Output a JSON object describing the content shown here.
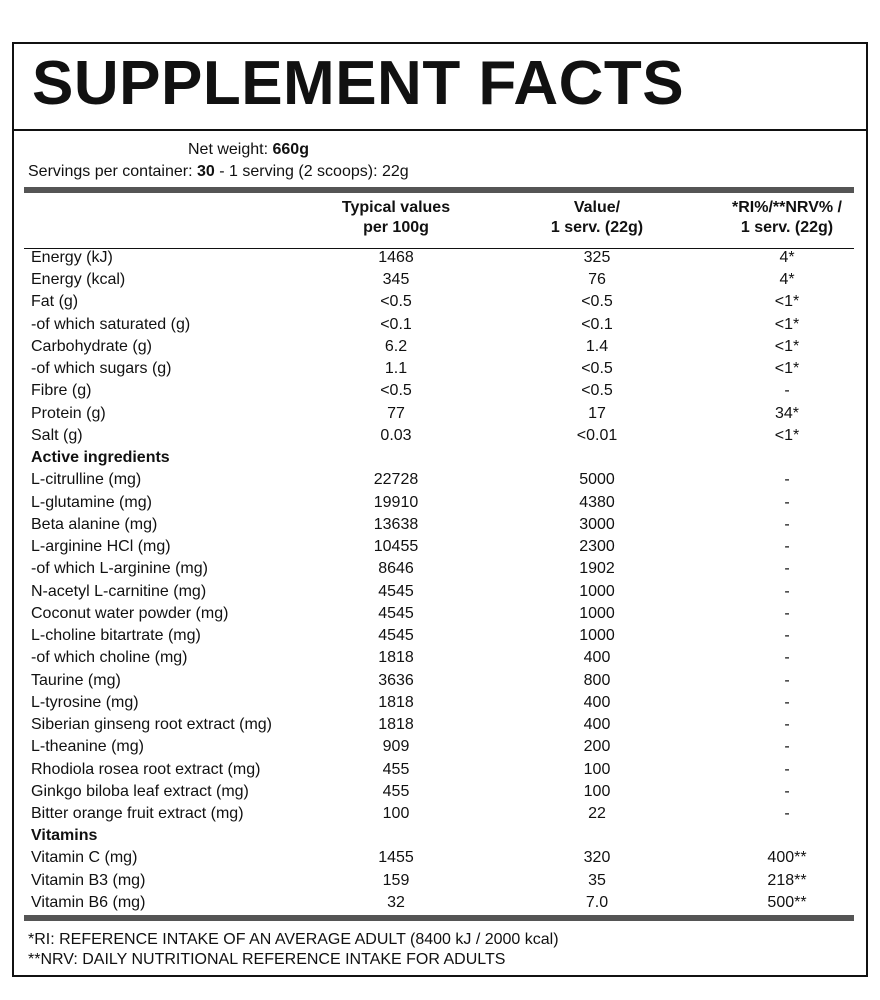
{
  "header": {
    "title": "SUPPLEMENT FACTS"
  },
  "net_weight": {
    "label": "Net weight:",
    "value": "660g"
  },
  "servings": {
    "label": "Servings per container:",
    "value": "30",
    "rest": "- 1 serving (2 scoops): 22g"
  },
  "table": {
    "columns": [
      [
        "Typical values",
        "per 100g"
      ],
      [
        "Value/",
        "1 serv. (22g)"
      ],
      [
        "*RI%/**NRV% /",
        "1 serv. (22g)"
      ]
    ],
    "rows": [
      [
        "Energy (kJ)",
        "1468",
        "325",
        "4*"
      ],
      [
        "Energy (kcal)",
        "345",
        "76",
        "4*"
      ],
      [
        "Fat (g)",
        "<0.5",
        "<0.5",
        "<1*"
      ],
      [
        "-of which saturated (g)",
        "<0.1",
        "<0.1",
        "<1*"
      ],
      [
        "Carbohydrate (g)",
        "6.2",
        "1.4",
        "<1*"
      ],
      [
        "-of which sugars (g)",
        "1.1",
        "<0.5",
        "<1*"
      ],
      [
        "Fibre (g)",
        "<0.5",
        "<0.5",
        "-"
      ],
      [
        "Protein (g)",
        "77",
        "17",
        "34*"
      ],
      [
        "Salt (g)",
        "0.03",
        "<0.01",
        "<1*"
      ],
      [
        "Active ingredients"
      ],
      [
        "L-citrulline (mg)",
        "22728",
        "5000",
        "-"
      ],
      [
        "L-glutamine (mg)",
        "19910",
        "4380",
        "-"
      ],
      [
        "Beta alanine (mg)",
        "13638",
        "3000",
        "-"
      ],
      [
        "L-arginine HCl (mg)",
        "10455",
        "2300",
        "-"
      ],
      [
        "-of which L-arginine (mg)",
        "8646",
        "1902",
        "-"
      ],
      [
        "N-acetyl L-carnitine (mg)",
        "4545",
        "1000",
        "-"
      ],
      [
        "Coconut water powder (mg)",
        "4545",
        "1000",
        "-"
      ],
      [
        "L-choline bitartrate (mg)",
        "4545",
        "1000",
        "-"
      ],
      [
        "-of which choline (mg)",
        "1818",
        "400",
        "-"
      ],
      [
        "Taurine (mg)",
        "3636",
        "800",
        "-"
      ],
      [
        "L-tyrosine (mg)",
        "1818",
        "400",
        "-"
      ],
      [
        "Siberian ginseng root extract (mg)",
        "1818",
        "400",
        "-"
      ],
      [
        "L-theanine (mg)",
        "909",
        "200",
        "-"
      ],
      [
        "Rhodiola rosea root extract (mg)",
        "455",
        "100",
        "-"
      ],
      [
        "Ginkgo biloba leaf extract (mg)",
        "455",
        "100",
        "-"
      ],
      [
        "Bitter orange fruit extract (mg)",
        "100",
        "22",
        "-"
      ],
      [
        "Vitamins"
      ],
      [
        "Vitamin C (mg)",
        "1455",
        "320",
        "400**"
      ],
      [
        "Vitamin B3 (mg)",
        "159",
        "35",
        "218**"
      ],
      [
        "Vitamin B6 (mg)",
        "32",
        "7.0",
        "500**"
      ]
    ]
  },
  "footnotes": [
    "*RI: REFERENCE INTAKE OF AN AVERAGE ADULT (8400 kJ / 2000 kcal)",
    "**NRV: DAILY NUTRITIONAL REFERENCE INTAKE FOR ADULTS"
  ]
}
